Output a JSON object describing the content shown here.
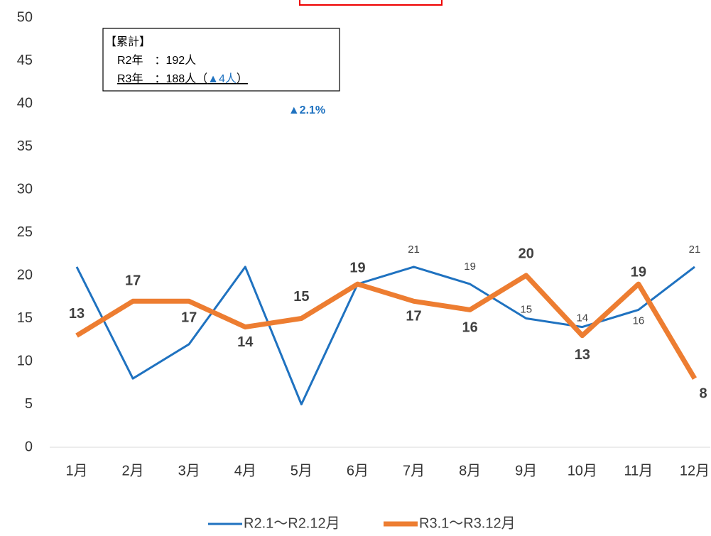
{
  "chart_data": {
    "type": "line",
    "categories": [
      "1月",
      "2月",
      "3月",
      "4月",
      "5月",
      "6月",
      "7月",
      "8月",
      "9月",
      "10月",
      "11月",
      "12月"
    ],
    "series": [
      {
        "name": "R2.1～R2.12月",
        "color": "#1f72c0",
        "values": [
          21,
          8,
          12,
          21,
          5,
          19,
          21,
          19,
          15,
          14,
          16,
          21
        ],
        "value_labels": [
          null,
          null,
          null,
          null,
          null,
          null,
          "21",
          "19",
          "15",
          "14",
          "16",
          "21"
        ]
      },
      {
        "name": "R3.1～R3.12月",
        "color": "#ed7d31",
        "values": [
          13,
          17,
          17,
          14,
          15,
          19,
          17,
          16,
          20,
          13,
          19,
          8
        ]
      }
    ],
    "ylim": [
      0,
      50
    ],
    "yticks": [
      0,
      5,
      10,
      15,
      20,
      25,
      30,
      35,
      40,
      45,
      50
    ],
    "grid": false,
    "legend": "bottom",
    "annotations": {
      "box_title": "【累計】",
      "r2_line": "R2年　：192人",
      "r3_line": [
        "R3年　：188人（",
        "▲4人",
        "）"
      ],
      "rate": "▲2.1%"
    }
  }
}
